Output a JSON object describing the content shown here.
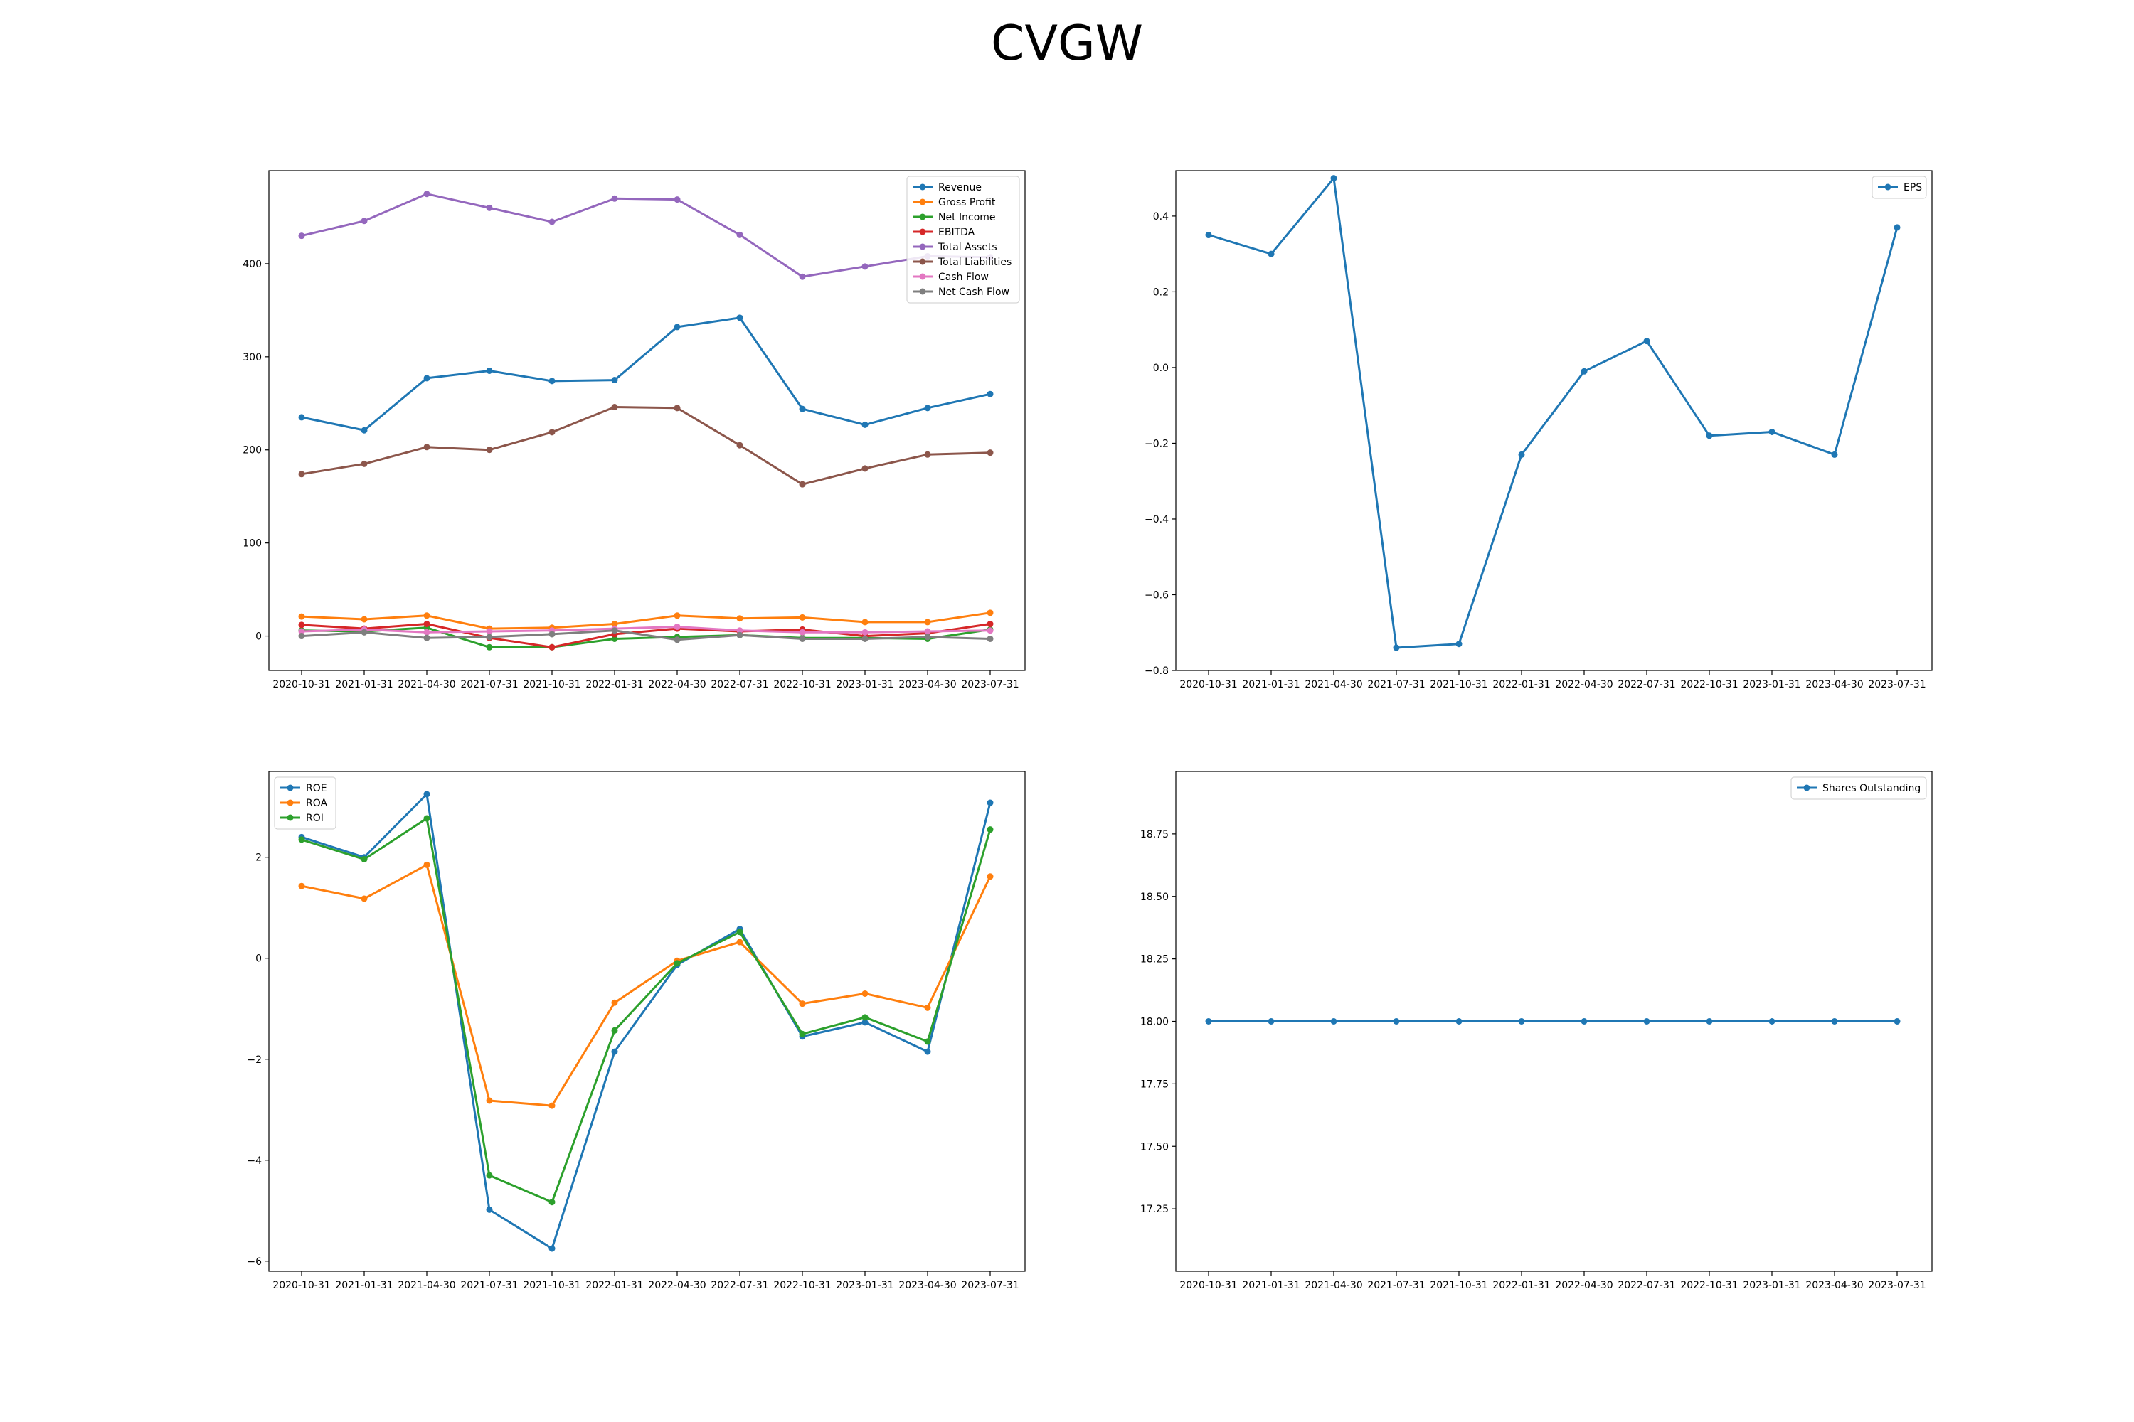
{
  "title": "CVGW",
  "chart_data": [
    {
      "type": "line",
      "x": [
        "2020-10-31",
        "2021-01-31",
        "2021-04-30",
        "2021-07-31",
        "2021-10-31",
        "2022-01-31",
        "2022-04-30",
        "2022-07-31",
        "2022-10-31",
        "2023-01-31",
        "2023-04-30",
        "2023-07-31"
      ],
      "ylim": [
        -37,
        500
      ],
      "yticks": [
        0,
        100,
        200,
        300,
        400
      ],
      "ytick_labels": [
        "0",
        "100",
        "200",
        "300",
        "400"
      ],
      "legend_position": "top-right",
      "series": [
        {
          "name": "Revenue",
          "color": "#1f77b4",
          "values": [
            235,
            221,
            277,
            285,
            274,
            275,
            332,
            342,
            244,
            227,
            245,
            260
          ]
        },
        {
          "name": "Gross Profit",
          "color": "#ff7f0e",
          "values": [
            21,
            18,
            22,
            8,
            9,
            13,
            22,
            19,
            20,
            15,
            15,
            25
          ]
        },
        {
          "name": "Net Income",
          "color": "#2ca02c",
          "values": [
            6,
            5,
            9,
            -12,
            -12,
            -3,
            -1,
            1,
            -2,
            -2,
            -3,
            7
          ]
        },
        {
          "name": "EBITDA",
          "color": "#d62728",
          "values": [
            12,
            8,
            13,
            -2,
            -12,
            2,
            8,
            5,
            7,
            0,
            3,
            13
          ]
        },
        {
          "name": "Total Assets",
          "color": "#9467bd",
          "values": [
            430,
            446,
            475,
            460,
            445,
            470,
            469,
            431,
            386,
            397,
            408,
            407
          ]
        },
        {
          "name": "Total Liabilities",
          "color": "#8c564b",
          "values": [
            174,
            185,
            203,
            200,
            219,
            246,
            245,
            205,
            163,
            180,
            195,
            197
          ]
        },
        {
          "name": "Cash Flow",
          "color": "#e377c2",
          "values": [
            5,
            7,
            4,
            5,
            6,
            8,
            10,
            6,
            4,
            4,
            5,
            6
          ]
        },
        {
          "name": "Net Cash Flow",
          "color": "#7f7f7f",
          "values": [
            0,
            4,
            -2,
            -1,
            2,
            6,
            -4,
            1,
            -3,
            -3,
            -1,
            -3
          ]
        }
      ]
    },
    {
      "type": "line",
      "x": [
        "2020-10-31",
        "2021-01-31",
        "2021-04-30",
        "2021-07-31",
        "2021-10-31",
        "2022-01-31",
        "2022-04-30",
        "2022-07-31",
        "2022-10-31",
        "2023-01-31",
        "2023-04-30",
        "2023-07-31"
      ],
      "ylim": [
        -0.8,
        0.52
      ],
      "yticks": [
        -0.8,
        -0.6,
        -0.4,
        -0.2,
        0.0,
        0.2,
        0.4
      ],
      "ytick_labels": [
        "−0.8",
        "−0.6",
        "−0.4",
        "−0.2",
        "0.0",
        "0.2",
        "0.4"
      ],
      "legend_position": "top-right",
      "series": [
        {
          "name": "EPS",
          "color": "#1f77b4",
          "values": [
            0.35,
            0.3,
            0.5,
            -0.74,
            -0.73,
            -0.23,
            -0.01,
            0.07,
            -0.18,
            -0.17,
            -0.23,
            0.37
          ]
        }
      ]
    },
    {
      "type": "line",
      "x": [
        "2020-10-31",
        "2021-01-31",
        "2021-04-30",
        "2021-07-31",
        "2021-10-31",
        "2022-01-31",
        "2022-04-30",
        "2022-07-31",
        "2022-10-31",
        "2023-01-31",
        "2023-04-30",
        "2023-07-31"
      ],
      "ylim": [
        -6.2,
        3.7
      ],
      "yticks": [
        -6,
        -4,
        -2,
        0,
        2
      ],
      "ytick_labels": [
        "−6",
        "−4",
        "−2",
        "0",
        "2"
      ],
      "legend_position": "top-left",
      "series": [
        {
          "name": "ROE",
          "color": "#1f77b4",
          "values": [
            2.4,
            2.0,
            3.25,
            -4.98,
            -5.75,
            -1.85,
            -0.13,
            0.58,
            -1.55,
            -1.27,
            -1.85,
            3.08
          ]
        },
        {
          "name": "ROA",
          "color": "#ff7f0e",
          "values": [
            1.43,
            1.18,
            1.85,
            -2.82,
            -2.92,
            -0.88,
            -0.05,
            0.32,
            -0.9,
            -0.7,
            -0.98,
            1.62
          ]
        },
        {
          "name": "ROI",
          "color": "#2ca02c",
          "values": [
            2.35,
            1.96,
            2.77,
            -4.3,
            -4.83,
            -1.43,
            -0.1,
            0.52,
            -1.5,
            -1.17,
            -1.65,
            2.55
          ]
        }
      ]
    },
    {
      "type": "line",
      "x": [
        "2020-10-31",
        "2021-01-31",
        "2021-04-30",
        "2021-07-31",
        "2021-10-31",
        "2022-01-31",
        "2022-04-30",
        "2022-07-31",
        "2022-10-31",
        "2023-01-31",
        "2023-04-30",
        "2023-07-31"
      ],
      "ylim": [
        17.0,
        19.0
      ],
      "yticks": [
        17.25,
        17.5,
        17.75,
        18.0,
        18.25,
        18.5,
        18.75
      ],
      "ytick_labels": [
        "17.25",
        "17.50",
        "17.75",
        "18.00",
        "18.25",
        "18.50",
        "18.75"
      ],
      "legend_position": "top-right",
      "series": [
        {
          "name": "Shares Outstanding",
          "color": "#1f77b4",
          "values": [
            18,
            18,
            18,
            18,
            18,
            18,
            18,
            18,
            18,
            18,
            18,
            18
          ]
        }
      ]
    }
  ]
}
